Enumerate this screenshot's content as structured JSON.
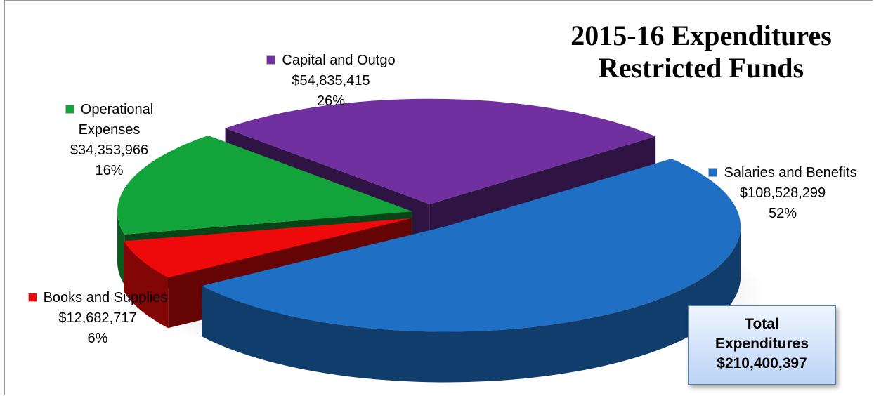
{
  "colors": {
    "salaries": "#1f6fc4",
    "capital": "#7030a0",
    "operational": "#12a33a",
    "books": "#ee0a0a"
  },
  "chart_data": {
    "type": "pie",
    "title": "2015-16 Expenditures Restricted Funds",
    "title_lines": [
      "2015-16 Expenditures",
      "Restricted Funds"
    ],
    "style": "3d-exploded",
    "series": [
      {
        "name": "Expenditures",
        "slices": [
          {
            "label_lines": [
              "Salaries and Benefits"
            ],
            "value": 108528299,
            "value_text": "$108,528,299",
            "percent_text": "52%",
            "color": "#1f6fc4"
          },
          {
            "label_lines": [
              "Books and Supplies"
            ],
            "value": 12682717,
            "value_text": "$12,682,717",
            "percent_text": "6%",
            "color": "#ee0a0a"
          },
          {
            "label_lines": [
              "Operational",
              "Expenses"
            ],
            "value": 34353966,
            "value_text": "$34,353,966",
            "percent_text": "16%",
            "color": "#12a33a"
          },
          {
            "label_lines": [
              "Capital and Outgo"
            ],
            "value": 54835415,
            "value_text": "$54,835,415",
            "percent_text": "26%",
            "color": "#7030a0"
          }
        ]
      }
    ],
    "annotation": {
      "lines": [
        "Total",
        "Expenditures",
        "$210,400,397"
      ]
    }
  }
}
